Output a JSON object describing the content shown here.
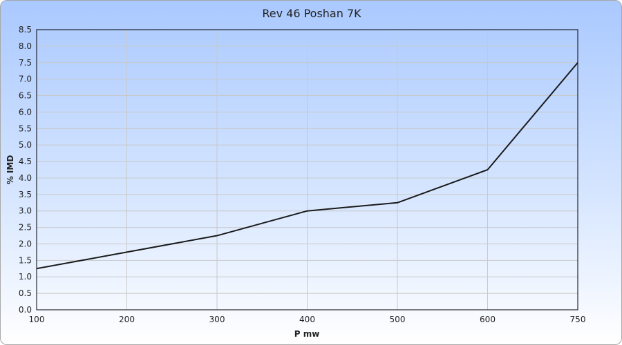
{
  "chart_data": {
    "type": "line",
    "title": "Rev 46 Poshan 7K",
    "xlabel": "P mw",
    "ylabel": "% IMD",
    "x_ticks": [
      "100",
      "200",
      "300",
      "400",
      "500",
      "600",
      "750"
    ],
    "y_ticks": [
      "0.0",
      "0.5",
      "1.0",
      "1.5",
      "2.0",
      "2.5",
      "3.0",
      "3.5",
      "4.0",
      "4.5",
      "5.0",
      "5.5",
      "6.0",
      "6.5",
      "7.0",
      "7.5",
      "8.0",
      "8.5"
    ],
    "ylim": [
      0,
      8.5
    ],
    "grid": true,
    "series": [
      {
        "x": [
          "100",
          "200",
          "300",
          "400",
          "500",
          "600",
          "750"
        ],
        "values": [
          1.25,
          1.75,
          2.25,
          3.0,
          3.25,
          4.25,
          7.5
        ],
        "color": "#1a1a1a"
      }
    ]
  }
}
